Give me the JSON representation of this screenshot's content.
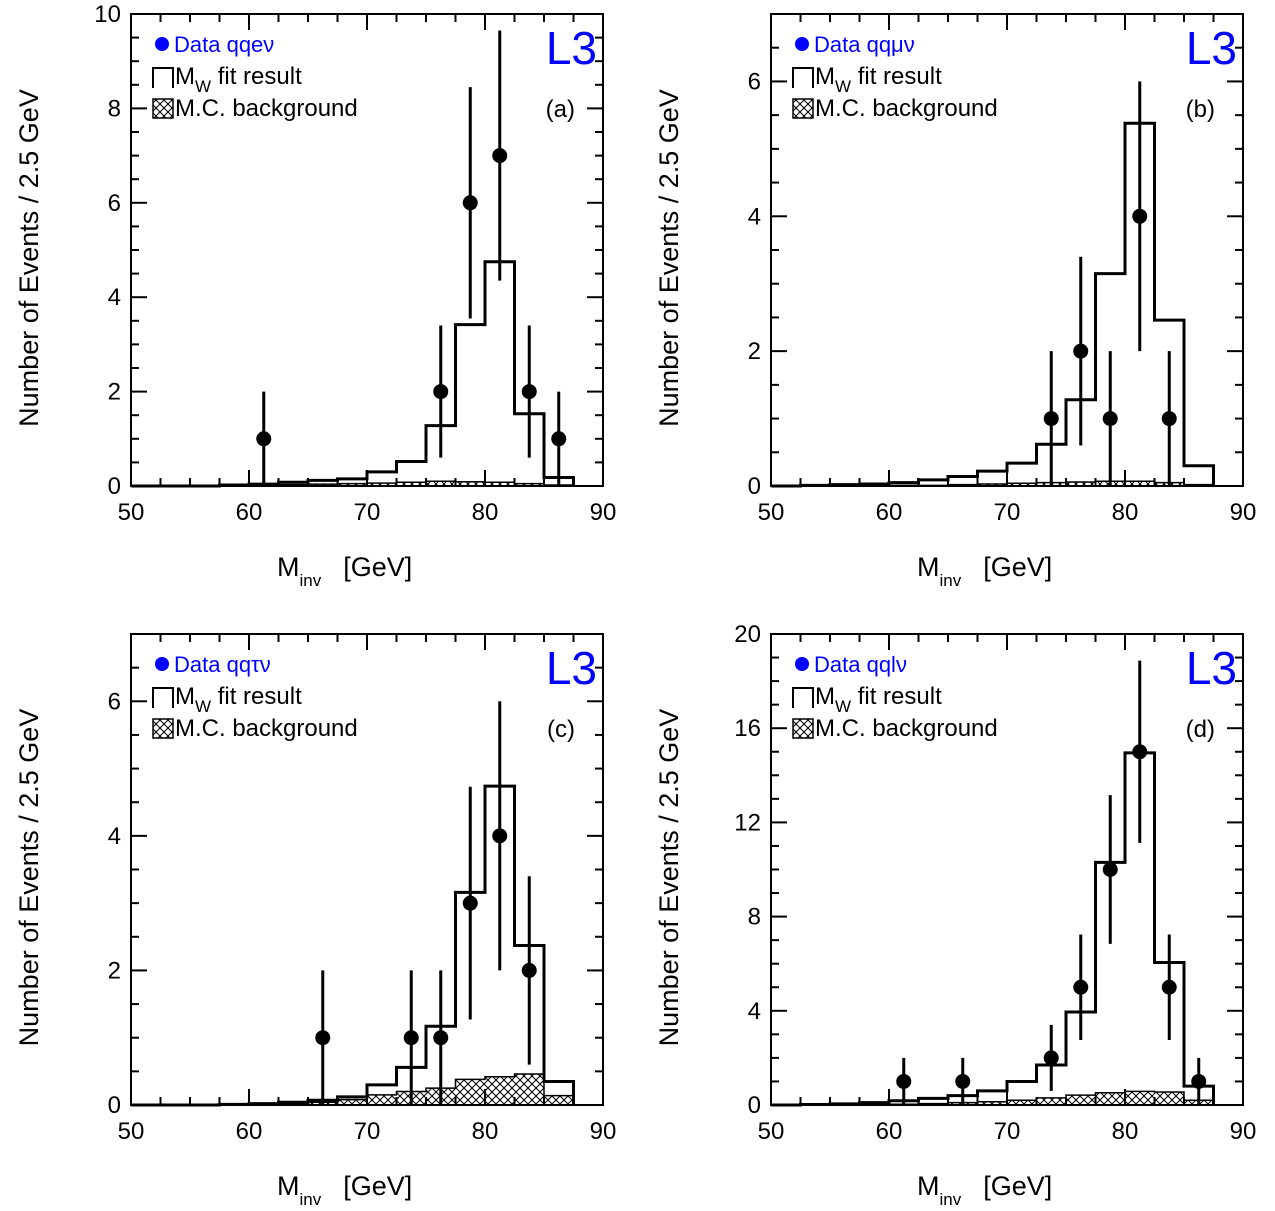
{
  "colors": {
    "data_legend_text": "#0000ff",
    "l3_logo": "#0000ff",
    "frame": "#000000",
    "points": "#000000",
    "background_hatch": "#000000"
  },
  "common": {
    "xlabel_main": "M",
    "xlabel_sub": "inv",
    "xlabel_unit": "[GeV]",
    "ylabel": "Number of Events / 2.5 GeV",
    "logo": "L3",
    "legend_fit_main": "M",
    "legend_fit_sub": "W",
    "legend_fit_rest": " fit result",
    "legend_bkg": "M.C. background",
    "x_ticks": [
      "50",
      "60",
      "70",
      "80",
      "90"
    ]
  },
  "chart_data": [
    {
      "type": "histogram",
      "panel_label": "(a)",
      "legend_data": "Data qqeν",
      "xlim": [
        50,
        90
      ],
      "ylim": [
        0,
        10
      ],
      "y_ticks": [
        "0",
        "2",
        "4",
        "6",
        "8",
        "10"
      ],
      "y_tick_values": [
        0,
        2,
        4,
        6,
        8,
        10
      ],
      "bin_edges": [
        50,
        52.5,
        55,
        57.5,
        60,
        62.5,
        65,
        67.5,
        70,
        72.5,
        75,
        77.5,
        80,
        82.5,
        85,
        87.5
      ],
      "fit_values": [
        0.0,
        0.0,
        0.0,
        0.02,
        0.04,
        0.08,
        0.12,
        0.15,
        0.3,
        0.52,
        1.28,
        3.42,
        4.75,
        1.53,
        0.18
      ],
      "bkg_values": [
        0.0,
        0.0,
        0.0,
        0.01,
        0.02,
        0.03,
        0.04,
        0.05,
        0.06,
        0.08,
        0.1,
        0.09,
        0.08,
        0.05,
        0.02
      ],
      "data_points": [
        {
          "x": 61.25,
          "y": 1,
          "err_low": 1,
          "err_high": 1
        },
        {
          "x": 76.25,
          "y": 2,
          "err_low": 1.4,
          "err_high": 1.4
        },
        {
          "x": 78.75,
          "y": 6,
          "err_low": 2.45,
          "err_high": 2.45
        },
        {
          "x": 81.25,
          "y": 7,
          "err_low": 2.65,
          "err_high": 2.65
        },
        {
          "x": 83.75,
          "y": 2,
          "err_low": 1.4,
          "err_high": 1.4
        },
        {
          "x": 86.25,
          "y": 1,
          "err_low": 1,
          "err_high": 1
        }
      ]
    },
    {
      "type": "histogram",
      "panel_label": "(b)",
      "legend_data": "Data qqμν",
      "xlim": [
        50,
        90
      ],
      "ylim": [
        0,
        7
      ],
      "y_ticks": [
        "0",
        "2",
        "4",
        "6"
      ],
      "y_tick_values": [
        0,
        2,
        4,
        6
      ],
      "bin_edges": [
        50,
        52.5,
        55,
        57.5,
        60,
        62.5,
        65,
        67.5,
        70,
        72.5,
        75,
        77.5,
        80,
        82.5,
        85,
        87.5
      ],
      "fit_values": [
        0.0,
        0.01,
        0.02,
        0.03,
        0.05,
        0.09,
        0.14,
        0.22,
        0.34,
        0.62,
        1.28,
        3.15,
        5.38,
        2.46,
        0.3
      ],
      "bkg_values": [
        0.0,
        0.0,
        0.0,
        0.0,
        0.01,
        0.01,
        0.02,
        0.03,
        0.04,
        0.05,
        0.06,
        0.07,
        0.07,
        0.05,
        0.02
      ],
      "data_points": [
        {
          "x": 73.75,
          "y": 1,
          "err_low": 1,
          "err_high": 1
        },
        {
          "x": 76.25,
          "y": 2,
          "err_low": 1.4,
          "err_high": 1.4
        },
        {
          "x": 78.75,
          "y": 1,
          "err_low": 1,
          "err_high": 1
        },
        {
          "x": 81.25,
          "y": 4,
          "err_low": 2,
          "err_high": 2
        },
        {
          "x": 83.75,
          "y": 1,
          "err_low": 1,
          "err_high": 1
        }
      ]
    },
    {
      "type": "histogram",
      "panel_label": "(c)",
      "legend_data": "Data qqτν",
      "xlim": [
        50,
        90
      ],
      "ylim": [
        0,
        7
      ],
      "y_ticks": [
        "0",
        "2",
        "4",
        "6"
      ],
      "y_tick_values": [
        0,
        2,
        4,
        6
      ],
      "bin_edges": [
        50,
        52.5,
        55,
        57.5,
        60,
        62.5,
        65,
        67.5,
        70,
        72.5,
        75,
        77.5,
        80,
        82.5,
        85,
        87.5
      ],
      "fit_values": [
        0.0,
        0.0,
        0.0,
        0.01,
        0.02,
        0.04,
        0.07,
        0.12,
        0.3,
        0.56,
        1.17,
        3.16,
        4.74,
        2.37,
        0.35
      ],
      "bkg_values": [
        0.0,
        0.0,
        0.0,
        0.0,
        0.01,
        0.02,
        0.04,
        0.08,
        0.15,
        0.2,
        0.25,
        0.38,
        0.42,
        0.46,
        0.14
      ],
      "data_points": [
        {
          "x": 66.25,
          "y": 1,
          "err_low": 1,
          "err_high": 1
        },
        {
          "x": 73.75,
          "y": 1,
          "err_low": 1,
          "err_high": 1
        },
        {
          "x": 76.25,
          "y": 1,
          "err_low": 1,
          "err_high": 1
        },
        {
          "x": 78.75,
          "y": 3,
          "err_low": 1.73,
          "err_high": 1.73
        },
        {
          "x": 81.25,
          "y": 4,
          "err_low": 2,
          "err_high": 2
        },
        {
          "x": 83.75,
          "y": 2,
          "err_low": 1.4,
          "err_high": 1.4
        }
      ]
    },
    {
      "type": "histogram",
      "panel_label": "(d)",
      "legend_data": "Data qqlν",
      "xlim": [
        50,
        90
      ],
      "ylim": [
        0,
        20
      ],
      "y_ticks": [
        "0",
        "4",
        "8",
        "12",
        "16",
        "20"
      ],
      "y_tick_values": [
        0,
        4,
        8,
        12,
        16,
        20
      ],
      "bin_edges": [
        50,
        52.5,
        55,
        57.5,
        60,
        62.5,
        65,
        67.5,
        70,
        72.5,
        75,
        77.5,
        80,
        82.5,
        85,
        87.5
      ],
      "fit_values": [
        0.0,
        0.02,
        0.05,
        0.1,
        0.18,
        0.28,
        0.4,
        0.6,
        1.0,
        1.7,
        3.95,
        10.3,
        14.95,
        6.05,
        0.8
      ],
      "bkg_values": [
        0.0,
        0.0,
        0.0,
        0.01,
        0.03,
        0.06,
        0.1,
        0.14,
        0.2,
        0.3,
        0.42,
        0.52,
        0.58,
        0.55,
        0.2
      ],
      "data_points": [
        {
          "x": 61.25,
          "y": 1,
          "err_low": 1,
          "err_high": 1
        },
        {
          "x": 66.25,
          "y": 1,
          "err_low": 1,
          "err_high": 1
        },
        {
          "x": 73.75,
          "y": 2,
          "err_low": 1.4,
          "err_high": 1.4
        },
        {
          "x": 76.25,
          "y": 5,
          "err_low": 2.24,
          "err_high": 2.24
        },
        {
          "x": 78.75,
          "y": 10,
          "err_low": 3.16,
          "err_high": 3.16
        },
        {
          "x": 81.25,
          "y": 15,
          "err_low": 3.87,
          "err_high": 3.87
        },
        {
          "x": 83.75,
          "y": 5,
          "err_low": 2.24,
          "err_high": 2.24
        },
        {
          "x": 86.25,
          "y": 1,
          "err_low": 1,
          "err_high": 1
        }
      ]
    }
  ]
}
